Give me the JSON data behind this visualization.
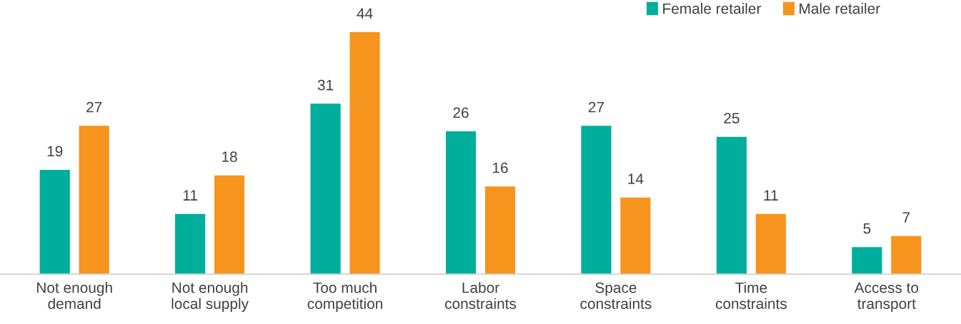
{
  "chart_data": {
    "type": "bar",
    "categories": [
      "Not enough\ndemand",
      "Not enough\nlocal supply",
      "Too much\ncompetition",
      "Labor\nconstraints",
      "Space\nconstraints",
      "Time\nconstraints",
      "Access to\ntransport"
    ],
    "series": [
      {
        "name": "Female retailer",
        "color": "#00ae9c",
        "values": [
          19,
          11,
          31,
          26,
          27,
          25,
          5
        ]
      },
      {
        "name": "Male retailer",
        "color": "#f7941d",
        "values": [
          27,
          18,
          44,
          16,
          14,
          11,
          7
        ]
      }
    ],
    "data_labels": true,
    "legend": "top right",
    "tick_labels": "x"
  }
}
